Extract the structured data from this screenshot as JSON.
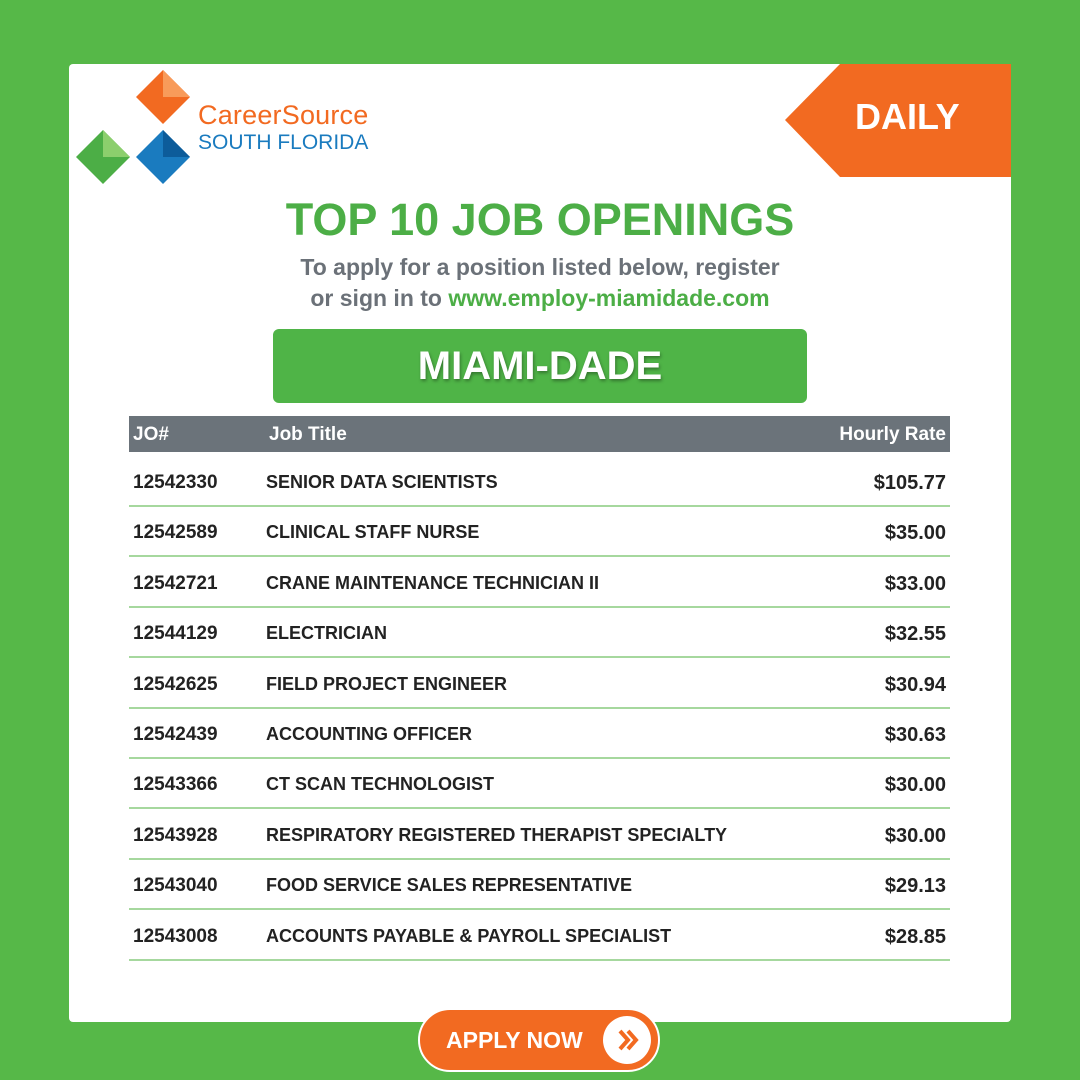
{
  "logo": {
    "line1": "CareerSource",
    "line2": "SOUTH FLORIDA"
  },
  "badge": "DAILY",
  "title": "TOP 10 JOB OPENINGS",
  "subtitle": {
    "text_line1": "To apply for a position listed below, register",
    "text_line2": "or sign in to",
    "link": "www.employ-miamidade.com"
  },
  "region": "MIAMI-DADE",
  "table": {
    "columns": [
      "JO#",
      "Job Title",
      "Hourly Rate"
    ],
    "rows": [
      [
        "12542330",
        "SENIOR DATA SCIENTISTS",
        "$105.77"
      ],
      [
        "12542589",
        "CLINICAL STAFF NURSE",
        "$35.00"
      ],
      [
        "12542721",
        "CRANE MAINTENANCE TECHNICIAN II",
        "$33.00"
      ],
      [
        "12544129",
        "ELECTRICIAN",
        "$32.55"
      ],
      [
        "12542625",
        "FIELD PROJECT ENGINEER",
        "$30.94"
      ],
      [
        "12542439",
        "ACCOUNTING OFFICER",
        "$30.63"
      ],
      [
        "12543366",
        "CT SCAN TECHNOLOGIST",
        "$30.00"
      ],
      [
        "12543928",
        "RESPIRATORY REGISTERED THERAPIST SPECIALTY",
        "$30.00"
      ],
      [
        "12543040",
        "FOOD SERVICE SALES REPRESENTATIVE",
        "$29.13"
      ],
      [
        "12543008",
        "ACCOUNTS PAYABLE & PAYROLL SPECIALIST",
        "$28.85"
      ]
    ]
  },
  "button": "APPLY NOW"
}
